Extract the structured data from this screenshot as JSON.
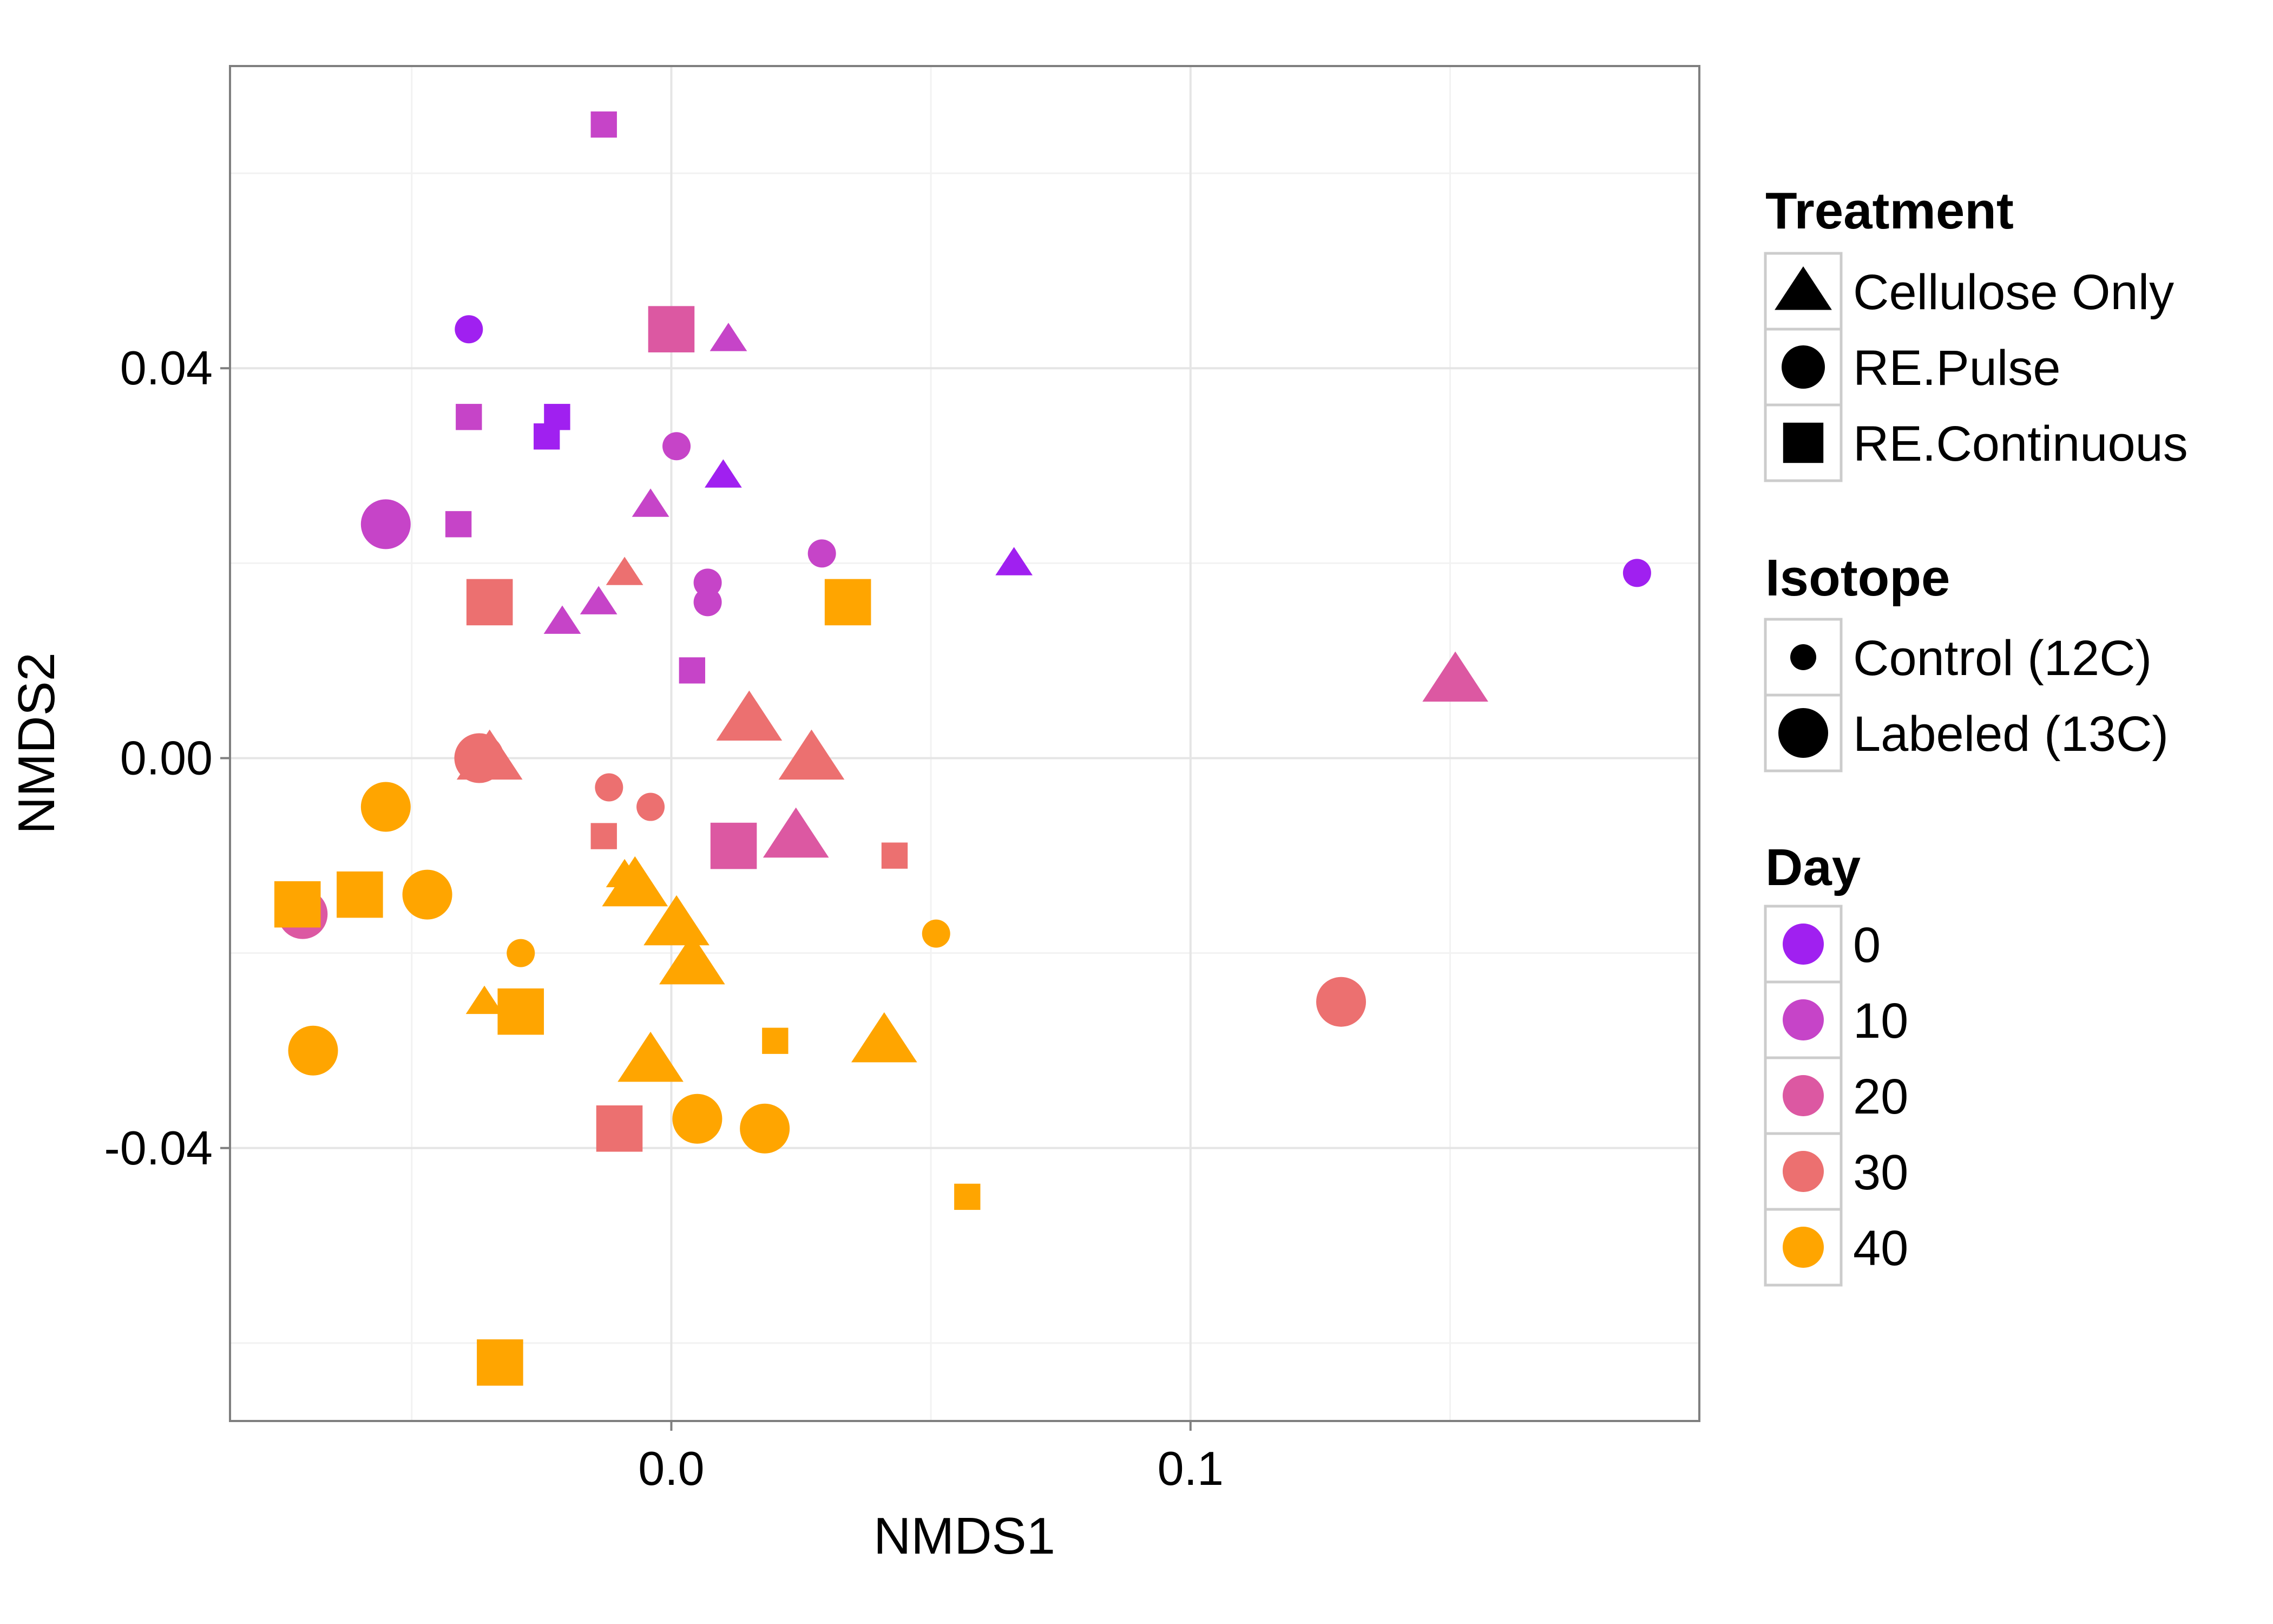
{
  "chart_data": {
    "type": "scatter",
    "title": "",
    "xlabel": "NMDS1",
    "ylabel": "NMDS2",
    "xlim": [
      -0.085,
      0.198
    ],
    "ylim": [
      -0.068,
      0.071
    ],
    "x_ticks": [
      {
        "value": 0.0,
        "label": "0.0"
      },
      {
        "value": 0.1,
        "label": "0.1"
      }
    ],
    "y_ticks": [
      {
        "value": 0.04,
        "label": "0.04"
      },
      {
        "value": 0.0,
        "label": "0.00"
      },
      {
        "value": -0.04,
        "label": "-0.04"
      }
    ],
    "grid": true,
    "legend_placement": "right",
    "legends": {
      "treatment": {
        "title": "Treatment",
        "items": [
          {
            "label": "Cellulose Only",
            "shape": "triangle"
          },
          {
            "label": "RE.Pulse",
            "shape": "circle"
          },
          {
            "label": "RE.Continuous",
            "shape": "square"
          }
        ]
      },
      "isotope": {
        "title": "Isotope",
        "items": [
          {
            "label": "Control (12C)",
            "size": "small"
          },
          {
            "label": "Labeled (13C)",
            "size": "large"
          }
        ]
      },
      "day": {
        "title": "Day",
        "items": [
          {
            "label": "0",
            "day": 0,
            "color": "#A020F0"
          },
          {
            "label": "10",
            "day": 10,
            "color": "#C644C8"
          },
          {
            "label": "20",
            "day": 20,
            "color": "#DC58A2"
          },
          {
            "label": "30",
            "day": 30,
            "color": "#EC7070"
          },
          {
            "label": "40",
            "day": 40,
            "color": "#FFA500"
          }
        ]
      }
    },
    "points": [
      {
        "x": -0.013,
        "y": 0.065,
        "shape": "square",
        "size": "small",
        "day": 10
      },
      {
        "x": -0.039,
        "y": 0.044,
        "shape": "circle",
        "size": "small",
        "day": 0
      },
      {
        "x": 0.011,
        "y": 0.043,
        "shape": "triangle",
        "size": "small",
        "day": 10
      },
      {
        "x": 0.0,
        "y": 0.044,
        "shape": "square",
        "size": "large",
        "day": 20
      },
      {
        "x": -0.039,
        "y": 0.035,
        "shape": "square",
        "size": "small",
        "day": 10
      },
      {
        "x": -0.022,
        "y": 0.035,
        "shape": "square",
        "size": "small",
        "day": 0
      },
      {
        "x": -0.024,
        "y": 0.033,
        "shape": "square",
        "size": "small",
        "day": 0
      },
      {
        "x": 0.001,
        "y": 0.032,
        "shape": "circle",
        "size": "small",
        "day": 10
      },
      {
        "x": 0.01,
        "y": 0.029,
        "shape": "triangle",
        "size": "small",
        "day": 0
      },
      {
        "x": -0.004,
        "y": 0.026,
        "shape": "triangle",
        "size": "small",
        "day": 10
      },
      {
        "x": -0.055,
        "y": 0.024,
        "shape": "circle",
        "size": "large",
        "day": 10
      },
      {
        "x": -0.041,
        "y": 0.024,
        "shape": "square",
        "size": "small",
        "day": 10
      },
      {
        "x": 0.029,
        "y": 0.021,
        "shape": "circle",
        "size": "small",
        "day": 10
      },
      {
        "x": 0.066,
        "y": 0.02,
        "shape": "triangle",
        "size": "small",
        "day": 0
      },
      {
        "x": 0.186,
        "y": 0.019,
        "shape": "circle",
        "size": "small",
        "day": 0
      },
      {
        "x": -0.009,
        "y": 0.019,
        "shape": "triangle",
        "size": "small",
        "day": 30
      },
      {
        "x": 0.007,
        "y": 0.018,
        "shape": "circle",
        "size": "small",
        "day": 10
      },
      {
        "x": -0.014,
        "y": 0.016,
        "shape": "triangle",
        "size": "small",
        "day": 10
      },
      {
        "x": 0.007,
        "y": 0.016,
        "shape": "circle",
        "size": "small",
        "day": 10
      },
      {
        "x": -0.035,
        "y": 0.016,
        "shape": "square",
        "size": "large",
        "day": 30
      },
      {
        "x": 0.034,
        "y": 0.016,
        "shape": "square",
        "size": "large",
        "day": 40
      },
      {
        "x": -0.021,
        "y": 0.014,
        "shape": "triangle",
        "size": "small",
        "day": 10
      },
      {
        "x": 0.004,
        "y": 0.009,
        "shape": "square",
        "size": "small",
        "day": 10
      },
      {
        "x": 0.151,
        "y": 0.008,
        "shape": "triangle",
        "size": "large",
        "day": 20
      },
      {
        "x": 0.015,
        "y": 0.004,
        "shape": "triangle",
        "size": "large",
        "day": 30
      },
      {
        "x": 0.027,
        "y": 0.0,
        "shape": "triangle",
        "size": "large",
        "day": 30
      },
      {
        "x": -0.035,
        "y": 0.0,
        "shape": "triangle",
        "size": "large",
        "day": 30
      },
      {
        "x": -0.037,
        "y": 0.0,
        "shape": "circle",
        "size": "large",
        "day": 30
      },
      {
        "x": -0.012,
        "y": -0.003,
        "shape": "circle",
        "size": "small",
        "day": 30
      },
      {
        "x": -0.004,
        "y": -0.005,
        "shape": "circle",
        "size": "small",
        "day": 30
      },
      {
        "x": -0.055,
        "y": -0.005,
        "shape": "circle",
        "size": "large",
        "day": 40
      },
      {
        "x": -0.013,
        "y": -0.008,
        "shape": "square",
        "size": "small",
        "day": 30
      },
      {
        "x": 0.024,
        "y": -0.008,
        "shape": "triangle",
        "size": "large",
        "day": 20
      },
      {
        "x": 0.012,
        "y": -0.009,
        "shape": "square",
        "size": "large",
        "day": 20
      },
      {
        "x": 0.043,
        "y": -0.01,
        "shape": "square",
        "size": "small",
        "day": 30
      },
      {
        "x": -0.009,
        "y": -0.012,
        "shape": "triangle",
        "size": "small",
        "day": 40
      },
      {
        "x": -0.007,
        "y": -0.013,
        "shape": "triangle",
        "size": "large",
        "day": 40
      },
      {
        "x": -0.047,
        "y": -0.014,
        "shape": "circle",
        "size": "large",
        "day": 40
      },
      {
        "x": -0.06,
        "y": -0.014,
        "shape": "square",
        "size": "large",
        "day": 40
      },
      {
        "x": -0.071,
        "y": -0.016,
        "shape": "circle",
        "size": "large",
        "day": 20
      },
      {
        "x": -0.072,
        "y": -0.015,
        "shape": "square",
        "size": "large",
        "day": 40
      },
      {
        "x": 0.001,
        "y": -0.017,
        "shape": "triangle",
        "size": "large",
        "day": 40
      },
      {
        "x": 0.051,
        "y": -0.018,
        "shape": "circle",
        "size": "small",
        "day": 40
      },
      {
        "x": -0.029,
        "y": -0.02,
        "shape": "circle",
        "size": "small",
        "day": 40
      },
      {
        "x": 0.004,
        "y": -0.021,
        "shape": "triangle",
        "size": "large",
        "day": 40
      },
      {
        "x": -0.036,
        "y": -0.025,
        "shape": "triangle",
        "size": "small",
        "day": 40
      },
      {
        "x": 0.129,
        "y": -0.025,
        "shape": "circle",
        "size": "large",
        "day": 30
      },
      {
        "x": -0.029,
        "y": -0.026,
        "shape": "square",
        "size": "large",
        "day": 40
      },
      {
        "x": 0.02,
        "y": -0.029,
        "shape": "square",
        "size": "small",
        "day": 40
      },
      {
        "x": 0.041,
        "y": -0.029,
        "shape": "triangle",
        "size": "large",
        "day": 40
      },
      {
        "x": -0.069,
        "y": -0.03,
        "shape": "circle",
        "size": "large",
        "day": 40
      },
      {
        "x": -0.004,
        "y": -0.031,
        "shape": "triangle",
        "size": "large",
        "day": 40
      },
      {
        "x": 0.005,
        "y": -0.037,
        "shape": "circle",
        "size": "large",
        "day": 40
      },
      {
        "x": 0.018,
        "y": -0.038,
        "shape": "circle",
        "size": "large",
        "day": 40
      },
      {
        "x": -0.01,
        "y": -0.038,
        "shape": "square",
        "size": "large",
        "day": 30
      },
      {
        "x": 0.057,
        "y": -0.045,
        "shape": "square",
        "size": "small",
        "day": 40
      },
      {
        "x": -0.033,
        "y": -0.062,
        "shape": "square",
        "size": "large",
        "day": 40
      }
    ]
  }
}
